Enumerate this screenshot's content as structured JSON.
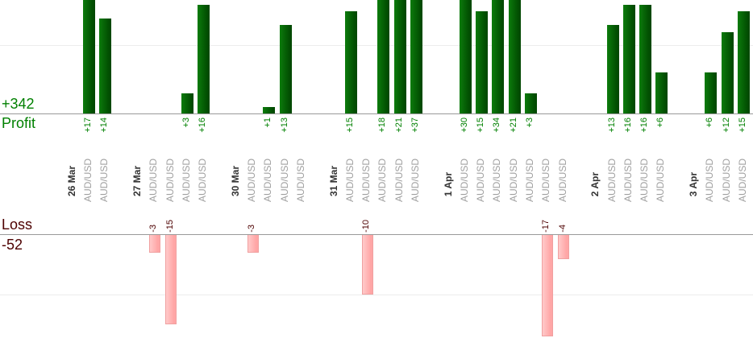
{
  "profit_panel": {
    "total_label": "+342",
    "axis_label": "Profit",
    "text_color": "#008000",
    "bar_gradient": [
      "#0c7c0c",
      "#014701"
    ]
  },
  "loss_panel": {
    "total_label": "-52",
    "axis_label": "Loss",
    "text_color": "#4d0000",
    "bar_gradient": [
      "#ffcaca",
      "#ffa6a6"
    ],
    "bar_border": "#f0a0a0"
  },
  "x_axis": {
    "date_color": "#333333",
    "symbol_color": "#a0a0a0"
  },
  "chart_data": {
    "type": "bar",
    "panels": [
      "profit (top, green)",
      "loss (bottom, pink)"
    ],
    "gridlines": {
      "profit_at": 10,
      "loss_at": -10,
      "color": "#ececec"
    },
    "totals": {
      "profit": 342,
      "loss": -52
    },
    "value_label_format": "signed integer, rotated 90deg CCW",
    "groups": [
      {
        "date": "26 Mar",
        "trades": [
          {
            "symbol": "AUD/USD",
            "value": 17
          },
          {
            "symbol": "AUD/USD",
            "value": 14
          }
        ]
      },
      {
        "date": "27 Mar",
        "trades": [
          {
            "symbol": "AUD/USD",
            "value": -3
          },
          {
            "symbol": "AUD/USD",
            "value": -15
          },
          {
            "symbol": "AUD/USD",
            "value": 3
          },
          {
            "symbol": "AUD/USD",
            "value": 16
          }
        ]
      },
      {
        "date": "30 Mar",
        "trades": [
          {
            "symbol": "AUD/USD",
            "value": -3
          },
          {
            "symbol": "AUD/USD",
            "value": 1
          },
          {
            "symbol": "AUD/USD",
            "value": 13
          },
          {
            "symbol": "AUD/USD",
            "value": 0
          }
        ]
      },
      {
        "date": "31 Mar",
        "trades": [
          {
            "symbol": "AUD/USD",
            "value": 15
          },
          {
            "symbol": "AUD/USD",
            "value": -10
          },
          {
            "symbol": "AUD/USD",
            "value": 18
          },
          {
            "symbol": "AUD/USD",
            "value": 21
          },
          {
            "symbol": "AUD/USD",
            "value": 37
          }
        ]
      },
      {
        "date": "1 Apr",
        "trades": [
          {
            "symbol": "AUD/USD",
            "value": 30
          },
          {
            "symbol": "AUD/USD",
            "value": 15
          },
          {
            "symbol": "AUD/USD",
            "value": 34
          },
          {
            "symbol": "AUD/USD",
            "value": 21
          },
          {
            "symbol": "AUD/USD",
            "value": 3
          },
          {
            "symbol": "AUD/USD",
            "value": -17
          },
          {
            "symbol": "AUD/USD",
            "value": -4
          }
        ]
      },
      {
        "date": "2 Apr",
        "trades": [
          {
            "symbol": "AUD/USD",
            "value": 13
          },
          {
            "symbol": "AUD/USD",
            "value": 16
          },
          {
            "symbol": "AUD/USD",
            "value": 16
          },
          {
            "symbol": "AUD/USD",
            "value": 6
          }
        ]
      },
      {
        "date": "3 Apr",
        "trades": [
          {
            "symbol": "AUD/USD",
            "value": 6
          },
          {
            "symbol": "AUD/USD",
            "value": 12
          },
          {
            "symbol": "AUD/USD",
            "value": 15
          }
        ]
      }
    ]
  }
}
